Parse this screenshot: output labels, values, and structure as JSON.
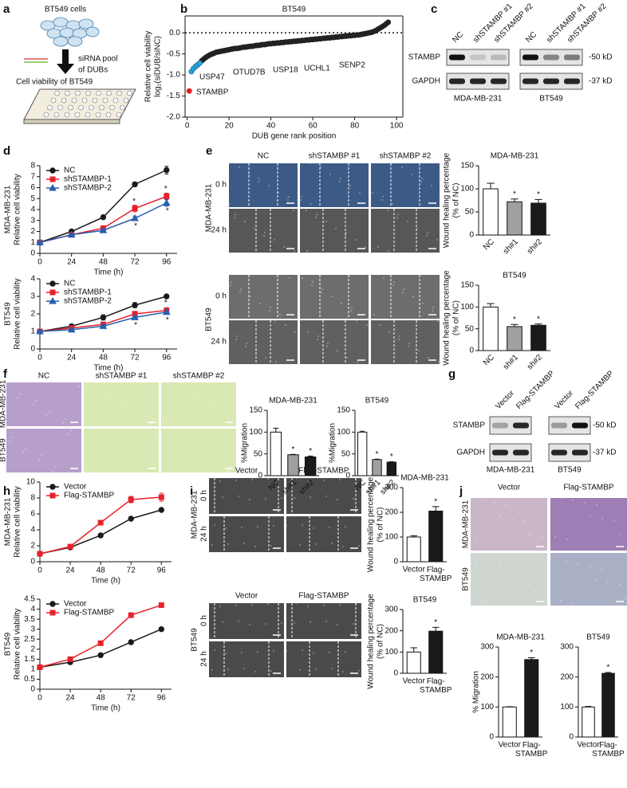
{
  "letters": [
    "a",
    "b",
    "c",
    "d",
    "e",
    "f",
    "g",
    "h",
    "i",
    "j"
  ],
  "panel_a": {
    "cells": "BT549 cells",
    "sirna": [
      "siRNA pool",
      "of DUBs"
    ],
    "assay": "Cell viability of BT549"
  },
  "blot_c": {
    "lanes": [
      [
        "NC",
        "shSTAMBP #1",
        "shSTAMBP #2"
      ],
      [
        "NC",
        "shSTAMBP #1",
        "shSTAMBP #2"
      ]
    ],
    "rows": [
      "STAMBP",
      "GAPDH"
    ],
    "sizes": [
      "-50 kD",
      "-37 kD"
    ],
    "cells": [
      "MDA-MB-231",
      "BT549"
    ]
  },
  "images_e": {
    "columns": [
      "NC",
      "shSTAMBP #1",
      "shSTAMBP #2"
    ],
    "times": [
      "0 h",
      "24 h"
    ],
    "cells": [
      "MDA-MB-231",
      "BT549"
    ]
  },
  "images_f": {
    "columns": [
      "NC",
      "shSTAMBP #1",
      "shSTAMBP #2"
    ],
    "cells": [
      "MDA-MB-231",
      "BT549"
    ]
  },
  "blot_g": {
    "lanes": [
      [
        "Vector",
        "Flag-STAMBP"
      ],
      [
        "Vector",
        "Flag-STAMBP"
      ]
    ],
    "rows": [
      "STAMBP",
      "GAPDH"
    ],
    "sizes": [
      "-50 kD",
      "-37 kD"
    ],
    "cells": [
      "MDA-MB-231",
      "BT549"
    ]
  },
  "images_i": {
    "columns": [
      "Vector",
      "Flag-STAMBP"
    ],
    "times": [
      "0 h",
      "24 h"
    ],
    "cells": [
      "MDA-MB-231",
      "BT549"
    ]
  },
  "images_j": {
    "columns": [
      "Vector",
      "Flag-STAMBP"
    ],
    "cells": [
      "MDA-MB-231",
      "BT549"
    ]
  },
  "chart_data": [
    {
      "type": "scatter",
      "title": "BT549",
      "ylabel": [
        "Relative cell viability",
        "log₂(siDUB/siNC)"
      ],
      "xlabel": "DUB gene rank position",
      "xlim": [
        -1,
        103
      ],
      "xticks": [
        0,
        20,
        40,
        60,
        80,
        100
      ],
      "ylim": [
        -2,
        0.4
      ],
      "yticks": [
        {
          "value": -2,
          "label": "-2.0"
        },
        {
          "value": -1.5,
          "label": "-1.5"
        },
        {
          "value": -1,
          "label": "-1.0"
        },
        {
          "value": -0.5,
          "label": "-0.5"
        },
        {
          "value": 0,
          "label": "0.0"
        }
      ],
      "hline": 0,
      "series": [
        {
          "color": "#222222",
          "x": [
            7,
            8,
            9,
            10,
            11,
            12,
            13,
            14,
            15,
            16,
            17,
            18,
            19,
            20,
            21,
            22,
            23,
            24,
            25,
            26,
            27,
            28,
            29,
            30,
            31,
            32,
            33,
            34,
            35,
            36,
            37,
            38,
            39,
            40,
            41,
            42,
            43,
            44,
            45,
            46,
            47,
            48,
            49,
            50,
            51,
            52,
            53,
            54,
            55,
            56,
            57,
            58,
            59,
            60,
            61,
            62,
            63,
            64,
            65,
            66,
            67,
            68,
            69,
            70,
            71,
            72,
            73,
            74,
            75,
            76,
            77,
            78,
            79,
            80,
            81,
            82,
            83,
            84,
            85,
            86,
            87,
            88,
            89,
            90,
            91,
            92,
            93,
            94,
            95,
            96
          ],
          "values": [
            -0.66,
            -0.62,
            -0.58,
            -0.55,
            -0.52,
            -0.5,
            -0.48,
            -0.46,
            -0.45,
            -0.44,
            -0.43,
            -0.42,
            -0.41,
            -0.4,
            -0.39,
            -0.38,
            -0.37,
            -0.37,
            -0.36,
            -0.35,
            -0.34,
            -0.34,
            -0.33,
            -0.32,
            -0.32,
            -0.31,
            -0.3,
            -0.3,
            -0.29,
            -0.28,
            -0.28,
            -0.27,
            -0.26,
            -0.26,
            -0.25,
            -0.25,
            -0.24,
            -0.24,
            -0.23,
            -0.23,
            -0.22,
            -0.22,
            -0.21,
            -0.21,
            -0.2,
            -0.2,
            -0.19,
            -0.19,
            -0.18,
            -0.18,
            -0.17,
            -0.17,
            -0.16,
            -0.16,
            -0.15,
            -0.15,
            -0.14,
            -0.14,
            -0.13,
            -0.13,
            -0.12,
            -0.12,
            -0.11,
            -0.11,
            -0.1,
            -0.1,
            -0.09,
            -0.09,
            -0.08,
            -0.08,
            -0.07,
            -0.07,
            -0.06,
            -0.06,
            -0.05,
            -0.05,
            -0.04,
            -0.03,
            -0.02,
            -0.01,
            0,
            0.01,
            0.03,
            0.05,
            0.08,
            0.11,
            0.14,
            0.17,
            0.21,
            0.25
          ]
        },
        {
          "color": "#2ea8e0",
          "x": [
            2,
            3,
            4,
            5,
            6
          ],
          "values": [
            -0.92,
            -0.85,
            -0.8,
            -0.76,
            -0.72
          ]
        },
        {
          "color": "#e02020",
          "x": [
            1
          ],
          "values": [
            -1.38
          ]
        }
      ],
      "annotations": [
        {
          "text": "STAMBP",
          "color": "#e02020"
        },
        {
          "text": "USP47",
          "color": "#2ea8e0"
        },
        {
          "text": "OTUD7B",
          "color": "#2ea8e0"
        },
        {
          "text": "USP18",
          "color": "#2ea8e0"
        },
        {
          "text": "UCHL1",
          "color": "#2ea8e0"
        },
        {
          "text": "SENP2",
          "color": "#2ea8e0"
        }
      ]
    },
    {
      "type": "line",
      "ylabel": [
        "MDA-MB-231",
        "Relative cell viability"
      ],
      "xlabel": "Time (h)",
      "x": [
        0,
        24,
        48,
        72,
        96
      ],
      "xlim": [
        0,
        104
      ],
      "xticks": [
        0,
        24,
        48,
        72,
        96
      ],
      "ylim": [
        0,
        8
      ],
      "yticks": [
        0,
        1,
        2,
        3,
        4,
        5,
        6,
        7,
        8
      ],
      "legend": "top-left",
      "series": [
        {
          "name": "NC",
          "color": "#1a1a1a",
          "marker": "circle",
          "values": [
            1,
            2,
            3.3,
            6.3,
            7.6
          ],
          "errors": [
            0.05,
            0.1,
            0.15,
            0.2,
            0.35
          ]
        },
        {
          "name": "shSTAMBP-1",
          "color": "#e8202a",
          "marker": "square",
          "values": [
            1,
            1.7,
            2.3,
            4.1,
            5.2
          ],
          "errors": [
            0.05,
            0.1,
            0.1,
            0.3,
            0.3
          ],
          "significance": [
            null,
            null,
            null,
            "*",
            "*"
          ]
        },
        {
          "name": "shSTAMBP-2",
          "color": "#2660b0",
          "marker": "triangle",
          "values": [
            1,
            1.7,
            2.1,
            3.2,
            4.6
          ],
          "errors": [
            0.05,
            0.1,
            0.1,
            0.2,
            0.3
          ],
          "significance": [
            null,
            null,
            null,
            "*",
            "*"
          ]
        }
      ]
    },
    {
      "type": "line",
      "ylabel": [
        "BT549",
        "Relative cell viability"
      ],
      "xlabel": "Time (h)",
      "x": [
        0,
        24,
        48,
        72,
        96
      ],
      "xlim": [
        0,
        104
      ],
      "xticks": [
        0,
        24,
        48,
        72,
        96
      ],
      "ylim": [
        0,
        4
      ],
      "yticks": [
        0,
        1,
        2,
        3,
        4
      ],
      "legend": "top-left",
      "series": [
        {
          "name": "NC",
          "color": "#1a1a1a",
          "marker": "circle",
          "values": [
            1,
            1.3,
            1.8,
            2.5,
            3
          ],
          "errors": [
            0.05,
            0.05,
            0.15,
            0.15,
            0.1
          ]
        },
        {
          "name": "shSTAMBP-1",
          "color": "#e8202a",
          "marker": "square",
          "values": [
            1,
            1.2,
            1.4,
            2,
            2.2
          ],
          "errors": [
            0.05,
            0.05,
            0.1,
            0.15,
            0.15
          ],
          "significance": [
            null,
            null,
            null,
            "*",
            "*"
          ]
        },
        {
          "name": "shSTAMBP-2",
          "color": "#2660b0",
          "marker": "triangle",
          "values": [
            1,
            1.1,
            1.3,
            1.8,
            2.1
          ],
          "errors": [
            0.05,
            0.05,
            0.05,
            0.1,
            0.1
          ],
          "significance": [
            null,
            null,
            null,
            "*",
            "*"
          ]
        }
      ]
    },
    {
      "type": "bar",
      "title": "MDA-MB-231",
      "ylabel": [
        "Wound healing percentage",
        "(% of NC)"
      ],
      "categories": [
        "NC",
        "sh#1",
        "sh#2"
      ],
      "values": [
        100,
        72,
        69
      ],
      "errors": [
        12,
        6,
        8
      ],
      "colors": [
        "#ffffff",
        "#a0a0a0",
        "#1a1a1a"
      ],
      "significance": [
        null,
        "*",
        "*"
      ],
      "ylim": [
        0,
        150
      ],
      "yticks": [
        0,
        50,
        100,
        150
      ]
    },
    {
      "type": "bar",
      "title": "BT549",
      "ylabel": [
        "Wound healing percentage",
        "(% of NC)"
      ],
      "categories": [
        "NC",
        "sh#1",
        "sh#2"
      ],
      "values": [
        100,
        55,
        58
      ],
      "errors": [
        8,
        5,
        3
      ],
      "colors": [
        "#ffffff",
        "#a0a0a0",
        "#1a1a1a"
      ],
      "significance": [
        null,
        "*",
        "*"
      ],
      "ylim": [
        0,
        150
      ],
      "yticks": [
        0,
        50,
        100,
        150
      ]
    },
    {
      "type": "bar",
      "title": "MDA-MB-231",
      "ylabel": [
        "%Migration"
      ],
      "categories": [
        "NC",
        "sh#1",
        "sh#2"
      ],
      "values": [
        100,
        48,
        43
      ],
      "errors": [
        9,
        1,
        2
      ],
      "colors": [
        "#ffffff",
        "#a0a0a0",
        "#1a1a1a"
      ],
      "significance": [
        null,
        "*",
        "*"
      ],
      "ylim": [
        0,
        150
      ],
      "yticks": [
        0,
        50,
        100,
        150
      ]
    },
    {
      "type": "bar",
      "title": "BT549",
      "ylabel": [
        "%Migration"
      ],
      "categories": [
        "NC",
        "sh#1",
        "sh#2"
      ],
      "values": [
        100,
        37,
        31
      ],
      "errors": [
        2,
        1,
        1
      ],
      "colors": [
        "#ffffff",
        "#a0a0a0",
        "#1a1a1a"
      ],
      "significance": [
        null,
        "*",
        "*"
      ],
      "ylim": [
        0,
        150
      ],
      "yticks": [
        0,
        50,
        100,
        150
      ]
    },
    {
      "type": "line",
      "ylabel": [
        "MDA-MB-231",
        "Relative cell viability"
      ],
      "xlabel": "Time (h)",
      "x": [
        0,
        24,
        48,
        72,
        96
      ],
      "xlim": [
        0,
        104
      ],
      "xticks": [
        0,
        24,
        48,
        72,
        96
      ],
      "ylim": [
        0,
        10
      ],
      "yticks": [
        0,
        2,
        4,
        6,
        8,
        10
      ],
      "legend": "top-left",
      "series": [
        {
          "name": "Vector",
          "color": "#1a1a1a",
          "marker": "circle",
          "values": [
            1,
            1.8,
            3.3,
            5.4,
            6.5
          ],
          "errors": [
            0.05,
            0.1,
            0.1,
            0.15,
            0.1
          ]
        },
        {
          "name": "Flag-STAMBP",
          "color": "#e8202a",
          "marker": "square",
          "values": [
            1,
            1.9,
            4.9,
            7.8,
            8.1
          ],
          "errors": [
            0.05,
            0.15,
            0.2,
            0.4,
            0.5
          ]
        }
      ]
    },
    {
      "type": "line",
      "ylabel": [
        "BT549",
        "Relative cell viability"
      ],
      "xlabel": "Time (h)",
      "x": [
        0,
        24,
        48,
        72,
        96
      ],
      "xlim": [
        0,
        104
      ],
      "xticks": [
        0,
        24,
        48,
        72,
        96
      ],
      "ylim": [
        0,
        4.5
      ],
      "yticks": [
        0,
        0.5,
        1,
        1.5,
        2,
        2.5,
        3,
        3.5,
        4,
        4.5
      ],
      "legend": "top-left",
      "series": [
        {
          "name": "Vector",
          "color": "#1a1a1a",
          "marker": "circle",
          "values": [
            1.1,
            1.35,
            1.7,
            2.35,
            3
          ],
          "errors": [
            0.05,
            0.05,
            0.1,
            0.08,
            0.05
          ]
        },
        {
          "name": "Flag-STAMBP",
          "color": "#e8202a",
          "marker": "square",
          "values": [
            1.1,
            1.5,
            2.3,
            3.7,
            4.2
          ],
          "errors": [
            0.05,
            0.05,
            0.05,
            0.08,
            0.1
          ]
        }
      ]
    },
    {
      "type": "bar",
      "title": "MDA-MB-231",
      "ylabel": [
        "Wound healing percentage",
        "(% of NC)"
      ],
      "categories": [
        "Vector",
        "Flag-STAMBP"
      ],
      "values": [
        100,
        205
      ],
      "errors": [
        5,
        18
      ],
      "colors": [
        "#ffffff",
        "#1a1a1a"
      ],
      "significance": [
        null,
        "*"
      ],
      "ylim": [
        0,
        300
      ],
      "yticks": [
        0,
        100,
        200,
        300
      ]
    },
    {
      "type": "bar",
      "title": "BT549",
      "ylabel": [
        "Wound healing percentage",
        "(% of NC)"
      ],
      "categories": [
        "Vector",
        "Flag-STAMBP"
      ],
      "values": [
        100,
        198
      ],
      "errors": [
        20,
        18
      ],
      "colors": [
        "#ffffff",
        "#1a1a1a"
      ],
      "significance": [
        null,
        "*"
      ],
      "ylim": [
        0,
        300
      ],
      "yticks": [
        0,
        100,
        200,
        300
      ]
    },
    {
      "type": "bar",
      "title": "MDA-MB-231",
      "ylabel": [
        "% Migration"
      ],
      "categories": [
        "Vector",
        "Flag-STAMBP"
      ],
      "values": [
        100,
        258
      ],
      "errors": [
        1,
        6
      ],
      "colors": [
        "#ffffff",
        "#1a1a1a"
      ],
      "significance": [
        null,
        "*"
      ],
      "ylim": [
        0,
        300
      ],
      "yticks": [
        0,
        100,
        200,
        300
      ]
    },
    {
      "type": "bar",
      "title": "BT549",
      "categories": [
        "Vector",
        "Flag-STAMBP"
      ],
      "values": [
        100,
        212
      ],
      "errors": [
        2,
        3
      ],
      "colors": [
        "#ffffff",
        "#1a1a1a"
      ],
      "significance": [
        null,
        "*"
      ],
      "ylim": [
        0,
        300
      ],
      "yticks": [
        0,
        100,
        200,
        300
      ]
    }
  ]
}
